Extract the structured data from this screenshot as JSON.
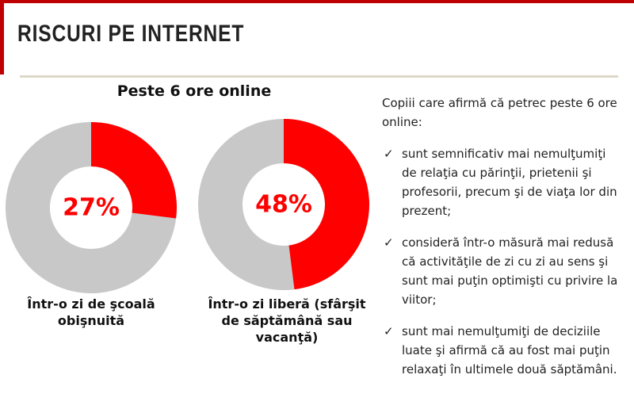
{
  "header": {
    "title": "RISCURI PE INTERNET"
  },
  "charts_title": "Peste 6 ore online",
  "chart_data": [
    {
      "type": "donut",
      "values": [
        27
      ],
      "value_labels": [
        "27%"
      ],
      "caption": "Într-o zi de şcoală obişnuită",
      "color": "#ff0000",
      "track_color": "#c8c8c8"
    },
    {
      "type": "donut",
      "values": [
        48
      ],
      "value_labels": [
        "48%"
      ],
      "caption": "Într-o zi liberă (sfârşit de săptămână sau vacanţă)",
      "color": "#ff0000",
      "track_color": "#c8c8c8"
    }
  ],
  "side_text": {
    "intro": "Copiii care afirmă că petrec peste 6 ore online:",
    "bullets": [
      "sunt semnificativ mai nemulţumiţi de relaţia cu părinţii, prietenii şi profesorii, precum şi de viaţa lor din prezent;",
      "consideră într-o măsură mai redusă că activităţile de zi cu zi au sens şi sunt mai puţin optimişti cu privire la viitor;",
      "sunt mai nemulţumiţi de deciziile luate şi afirmă că au fost mai puţin relaxaţi în ultimele două săptămâni."
    ]
  }
}
